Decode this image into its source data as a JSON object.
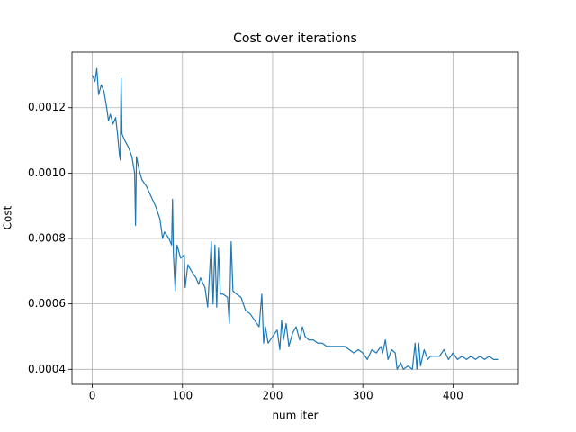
{
  "chart_data": {
    "type": "line",
    "title": "Cost over iterations",
    "xlabel": "num iter",
    "ylabel": "Cost",
    "x": [
      0,
      3,
      5,
      7,
      10,
      13,
      16,
      18,
      20,
      23,
      26,
      28,
      30,
      31,
      32,
      33,
      36,
      40,
      44,
      47,
      48,
      49,
      52,
      55,
      60,
      65,
      70,
      75,
      78,
      80,
      85,
      88,
      89,
      90,
      92,
      94,
      98,
      102,
      103,
      106,
      110,
      115,
      118,
      120,
      125,
      128,
      132,
      134,
      136,
      138,
      140,
      142,
      145,
      150,
      152,
      154,
      156,
      160,
      165,
      170,
      175,
      180,
      185,
      188,
      190,
      192,
      195,
      200,
      205,
      208,
      210,
      212,
      215,
      218,
      222,
      226,
      230,
      233,
      236,
      240,
      245,
      250,
      255,
      260,
      270,
      280,
      285,
      290,
      295,
      300,
      305,
      310,
      315,
      320,
      322,
      325,
      328,
      332,
      336,
      338,
      342,
      345,
      350,
      355,
      358,
      360,
      362,
      364,
      368,
      372,
      375,
      380,
      385,
      390,
      395,
      400,
      405,
      410,
      415,
      420,
      425,
      430,
      435,
      440,
      445,
      450
    ],
    "values": [
      0.0013,
      0.00128,
      0.00132,
      0.00124,
      0.00127,
      0.00125,
      0.0012,
      0.00116,
      0.00118,
      0.00115,
      0.00117,
      0.00112,
      0.00106,
      0.00104,
      0.00129,
      0.00112,
      0.0011,
      0.00108,
      0.00105,
      0.001,
      0.00084,
      0.00105,
      0.00101,
      0.00098,
      0.00096,
      0.00093,
      0.0009,
      0.00086,
      0.0008,
      0.00082,
      0.0008,
      0.00078,
      0.00092,
      0.00075,
      0.00064,
      0.00078,
      0.00074,
      0.00075,
      0.00065,
      0.00072,
      0.0007,
      0.00068,
      0.00066,
      0.00068,
      0.00065,
      0.00059,
      0.00079,
      0.0006,
      0.00078,
      0.00059,
      0.00077,
      0.00063,
      0.00063,
      0.00062,
      0.00054,
      0.00079,
      0.00064,
      0.00063,
      0.00062,
      0.00058,
      0.00057,
      0.00055,
      0.00053,
      0.00063,
      0.00048,
      0.00053,
      0.00048,
      0.0005,
      0.00052,
      0.00046,
      0.00055,
      0.00049,
      0.00054,
      0.00047,
      0.00051,
      0.00053,
      0.00049,
      0.00053,
      0.0005,
      0.00049,
      0.00049,
      0.00048,
      0.00048,
      0.00047,
      0.00047,
      0.00047,
      0.00046,
      0.00045,
      0.00046,
      0.00045,
      0.00043,
      0.00046,
      0.00045,
      0.00047,
      0.00045,
      0.00049,
      0.00043,
      0.00046,
      0.00045,
      0.0004,
      0.00042,
      0.0004,
      0.00041,
      0.0004,
      0.00048,
      0.0004,
      0.00048,
      0.00041,
      0.00046,
      0.00043,
      0.00044,
      0.00044,
      0.00044,
      0.00046,
      0.00043,
      0.00045,
      0.00043,
      0.00044,
      0.00043,
      0.00044,
      0.00043,
      0.00044,
      0.00043,
      0.00044,
      0.00043,
      0.00043
    ],
    "color": "#1f77b4",
    "xlim": [
      -22.5,
      472.5
    ],
    "xticks": [
      0,
      100,
      200,
      300,
      400
    ],
    "ylim": [
      0.000354,
      0.00137
    ],
    "yticks": [
      {
        "value": 0.0004,
        "label": "0.0004"
      },
      {
        "value": 0.0006,
        "label": "0.0006"
      },
      {
        "value": 0.0008,
        "label": "0.0008"
      },
      {
        "value": 0.001,
        "label": "0.0010"
      },
      {
        "value": 0.0012,
        "label": "0.0012"
      }
    ],
    "grid": true
  }
}
